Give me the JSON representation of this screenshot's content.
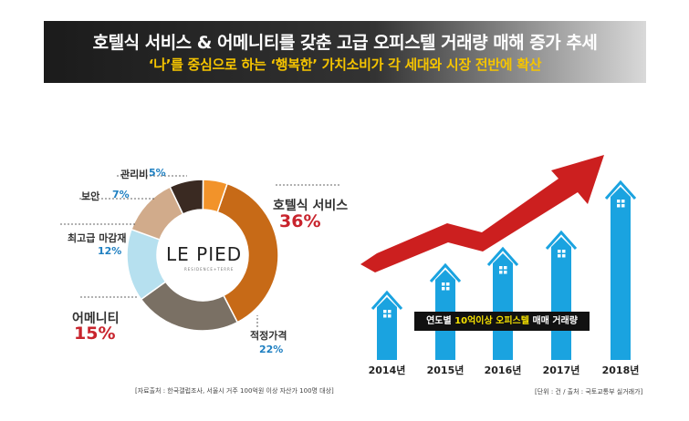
{
  "banner": {
    "title": "호텔식 서비스 & 어메니티를 갖춘 고급 오피스텔 거래량 매해 증가 추세",
    "subtitle": "‘나’를 중심으로 하는 ‘행복한’ 가치소비가 각 세대와 시장 전반에 확산"
  },
  "logo": {
    "main": "LE PIED",
    "sub": "RESIDENCE+TERRE"
  },
  "left_note": "[자료출처 : 한국갤럽조사, 서울시 거주 100억원 이상 자산가 100명 대상]",
  "right_note": "[단위 : 건 / 출처 : 국토교통부 실거래가]",
  "right_caption": {
    "pre": "연도별 ",
    "highlight": "10억이상 오피스텔",
    "post": " 매매 거래량"
  },
  "colors": {
    "hotel": "#c76a17",
    "jeokjeong": "#7a7064",
    "amenity": "#b6e0ef",
    "finish": "#d1ab8b",
    "security": "#3a2a22",
    "fee": "#f2932a",
    "accent_red": "#c8242d",
    "accent_blue": "#1e7fc1",
    "bar": "#1aa3e0",
    "arrow": "#cc1f1f"
  },
  "chart_data": [
    {
      "type": "pie",
      "categories": [
        "호텔식 서비스",
        "적정가격",
        "어메니티",
        "최고급 마감재",
        "보안",
        "관리비"
      ],
      "values": [
        36,
        22,
        15,
        12,
        7,
        5
      ],
      "labels_pct": [
        "36%",
        "22%",
        "15%",
        "12%",
        "7%",
        "5%"
      ],
      "colors": [
        "#c76a17",
        "#7a7064",
        "#b6e0ef",
        "#d1ab8b",
        "#3a2a22",
        "#f2932a"
      ]
    },
    {
      "type": "bar",
      "categories": [
        "2014년",
        "2015년",
        "2016년",
        "2017년",
        "2018년"
      ],
      "values": [
        72,
        102,
        120,
        138,
        193
      ],
      "ylim": [
        0,
        200
      ]
    }
  ]
}
